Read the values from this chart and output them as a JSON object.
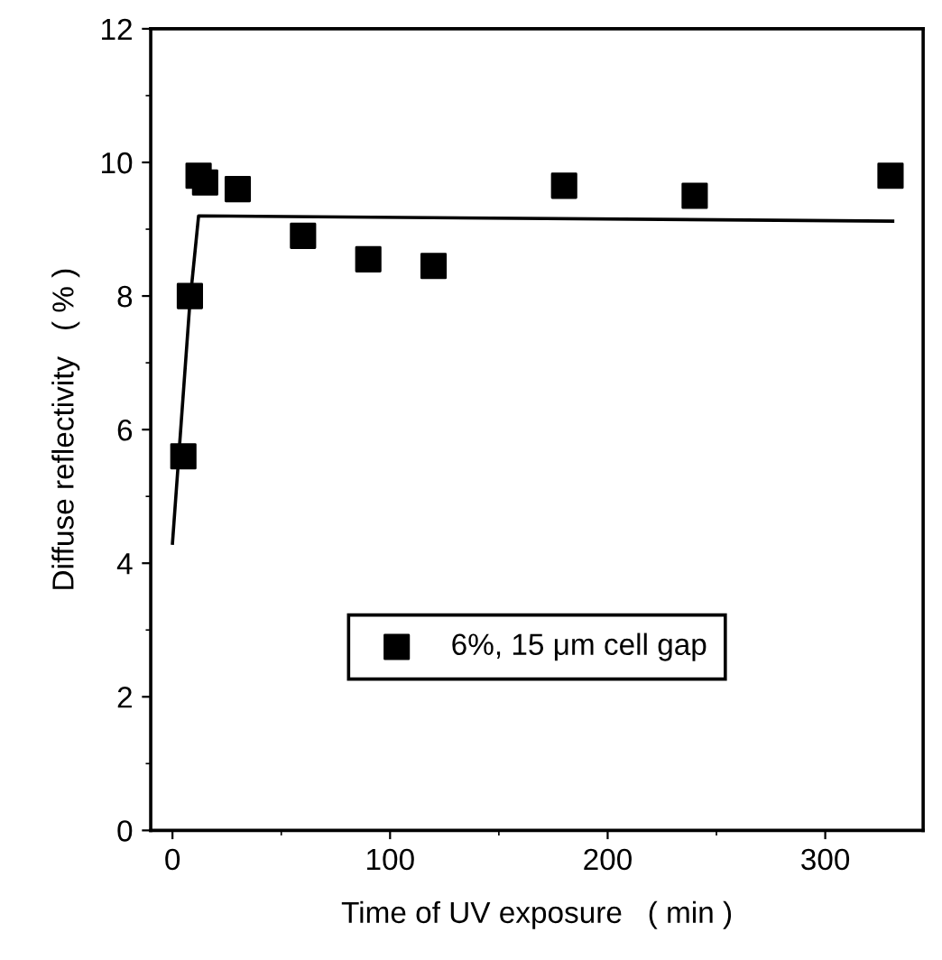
{
  "chart_data": {
    "type": "scatter",
    "xlabel": "Time of UV exposure   ( min )",
    "ylabel": "Diffuse reflectivity   ( % )",
    "xlim": [
      -10,
      345
    ],
    "ylim": [
      0,
      12
    ],
    "xticks": [
      0,
      100,
      200,
      300
    ],
    "yticks": [
      0,
      2,
      4,
      6,
      8,
      10,
      12
    ],
    "legend": "bottom",
    "grid": false,
    "series": [
      {
        "name": "6%, 15 μm cell gap",
        "color": "#000000",
        "marker": "square",
        "x": [
          5,
          8,
          12,
          15,
          30,
          60,
          90,
          120,
          180,
          240,
          330
        ],
        "values": [
          5.6,
          8.0,
          9.8,
          9.7,
          9.6,
          8.9,
          8.55,
          8.45,
          9.65,
          9.5,
          9.8
        ]
      },
      {
        "type": "line",
        "color": "#000000",
        "line_style": "solid",
        "marker": "none",
        "x": [
          0,
          8,
          12,
          331
        ],
        "values": [
          4.3,
          7.9,
          9.2,
          9.12
        ]
      }
    ]
  }
}
